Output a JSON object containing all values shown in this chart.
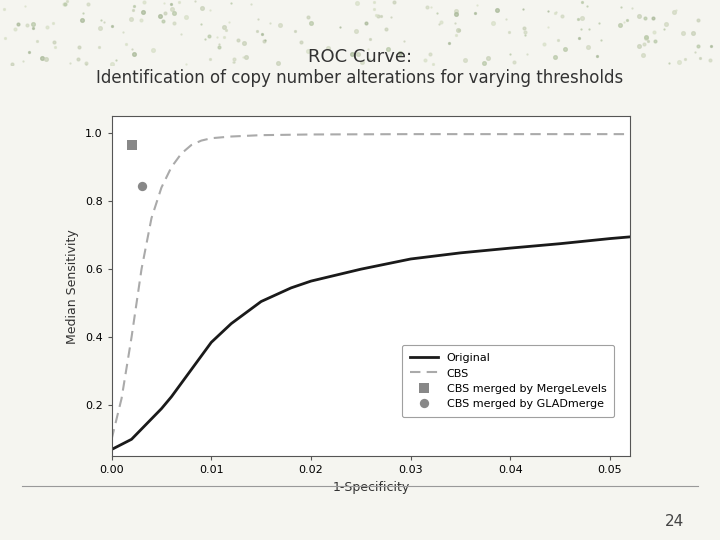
{
  "title_line1": "ROC Curve:",
  "title_line2": "Identification of copy number alterations for varying thresholds",
  "xlabel": "1-Specificity",
  "ylabel": "Median Sensitivity",
  "xlim": [
    0.0,
    0.052
  ],
  "ylim": [
    0.05,
    1.05
  ],
  "xticks": [
    0.0,
    0.01,
    0.02,
    0.03,
    0.04,
    0.05
  ],
  "yticks": [
    0.2,
    0.4,
    0.6,
    0.8,
    1.0
  ],
  "background_color": "#ffffff",
  "slide_background": "#f5f5f0",
  "original_x": [
    0.0,
    0.001,
    0.002,
    0.003,
    0.004,
    0.005,
    0.006,
    0.007,
    0.008,
    0.009,
    0.01,
    0.012,
    0.015,
    0.018,
    0.02,
    0.025,
    0.03,
    0.035,
    0.04,
    0.045,
    0.05,
    0.052
  ],
  "original_y": [
    0.07,
    0.085,
    0.1,
    0.13,
    0.16,
    0.19,
    0.225,
    0.265,
    0.305,
    0.345,
    0.385,
    0.44,
    0.505,
    0.545,
    0.565,
    0.6,
    0.63,
    0.648,
    0.662,
    0.675,
    0.69,
    0.695
  ],
  "cbs_x": [
    0.0,
    0.001,
    0.002,
    0.003,
    0.004,
    0.005,
    0.006,
    0.007,
    0.008,
    0.009,
    0.01,
    0.012,
    0.015,
    0.02,
    0.03,
    0.04,
    0.05,
    0.052
  ],
  "cbs_y": [
    0.1,
    0.22,
    0.4,
    0.6,
    0.75,
    0.84,
    0.9,
    0.94,
    0.965,
    0.978,
    0.985,
    0.99,
    0.994,
    0.996,
    0.997,
    0.997,
    0.997,
    0.997
  ],
  "mergelevels_x": [
    0.002
  ],
  "mergelevels_y": [
    0.965
  ],
  "gladmerge_x": [
    0.003
  ],
  "gladmerge_y": [
    0.845
  ],
  "line_color": "#1a1a1a",
  "cbs_color": "#aaaaaa",
  "point_color": "#888888",
  "page_number": "24",
  "title_fontsize": 13,
  "subtitle_fontsize": 12,
  "axis_fontsize": 9,
  "tick_fontsize": 8,
  "legend_fontsize": 8
}
